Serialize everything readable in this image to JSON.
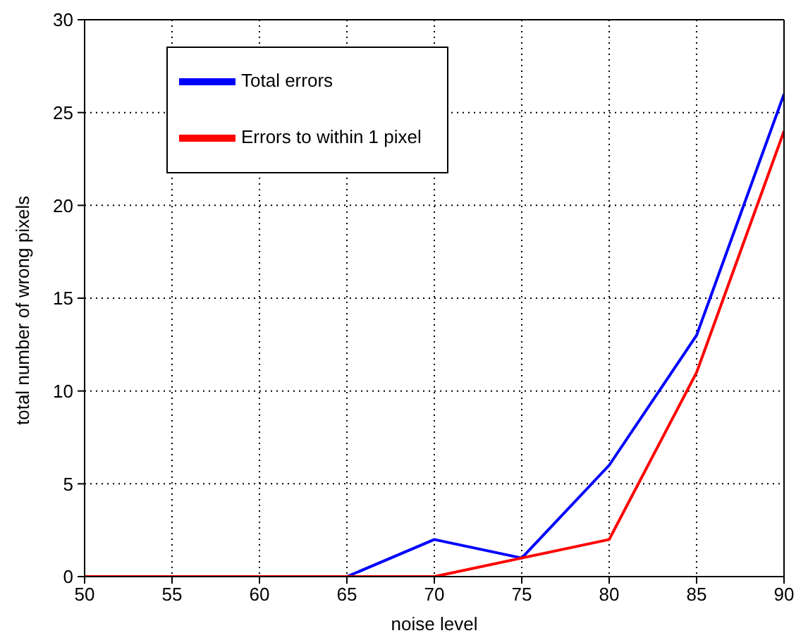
{
  "chart_data": {
    "type": "line",
    "xlabel": "noise level",
    "ylabel": "total number of wrong pixels",
    "x": [
      50,
      55,
      60,
      65,
      70,
      75,
      80,
      85,
      90
    ],
    "series": [
      {
        "name": "Total errors",
        "color": "#0000ff",
        "values": [
          null,
          null,
          0,
          0,
          2,
          1,
          6,
          13,
          26
        ]
      },
      {
        "name": "Errors to within 1 pixel",
        "color": "#ff0000",
        "values": [
          0,
          0,
          0,
          0,
          0,
          1,
          2,
          11,
          24
        ]
      }
    ],
    "xlim": [
      50,
      90
    ],
    "xticks": [
      50,
      55,
      60,
      65,
      70,
      75,
      80,
      85,
      90
    ],
    "ylim": [
      0,
      30
    ],
    "yticks": [
      0,
      5,
      10,
      15,
      20,
      25,
      30
    ],
    "grid": true,
    "legend": "top left",
    "marker": "none",
    "line_style": "solid"
  }
}
